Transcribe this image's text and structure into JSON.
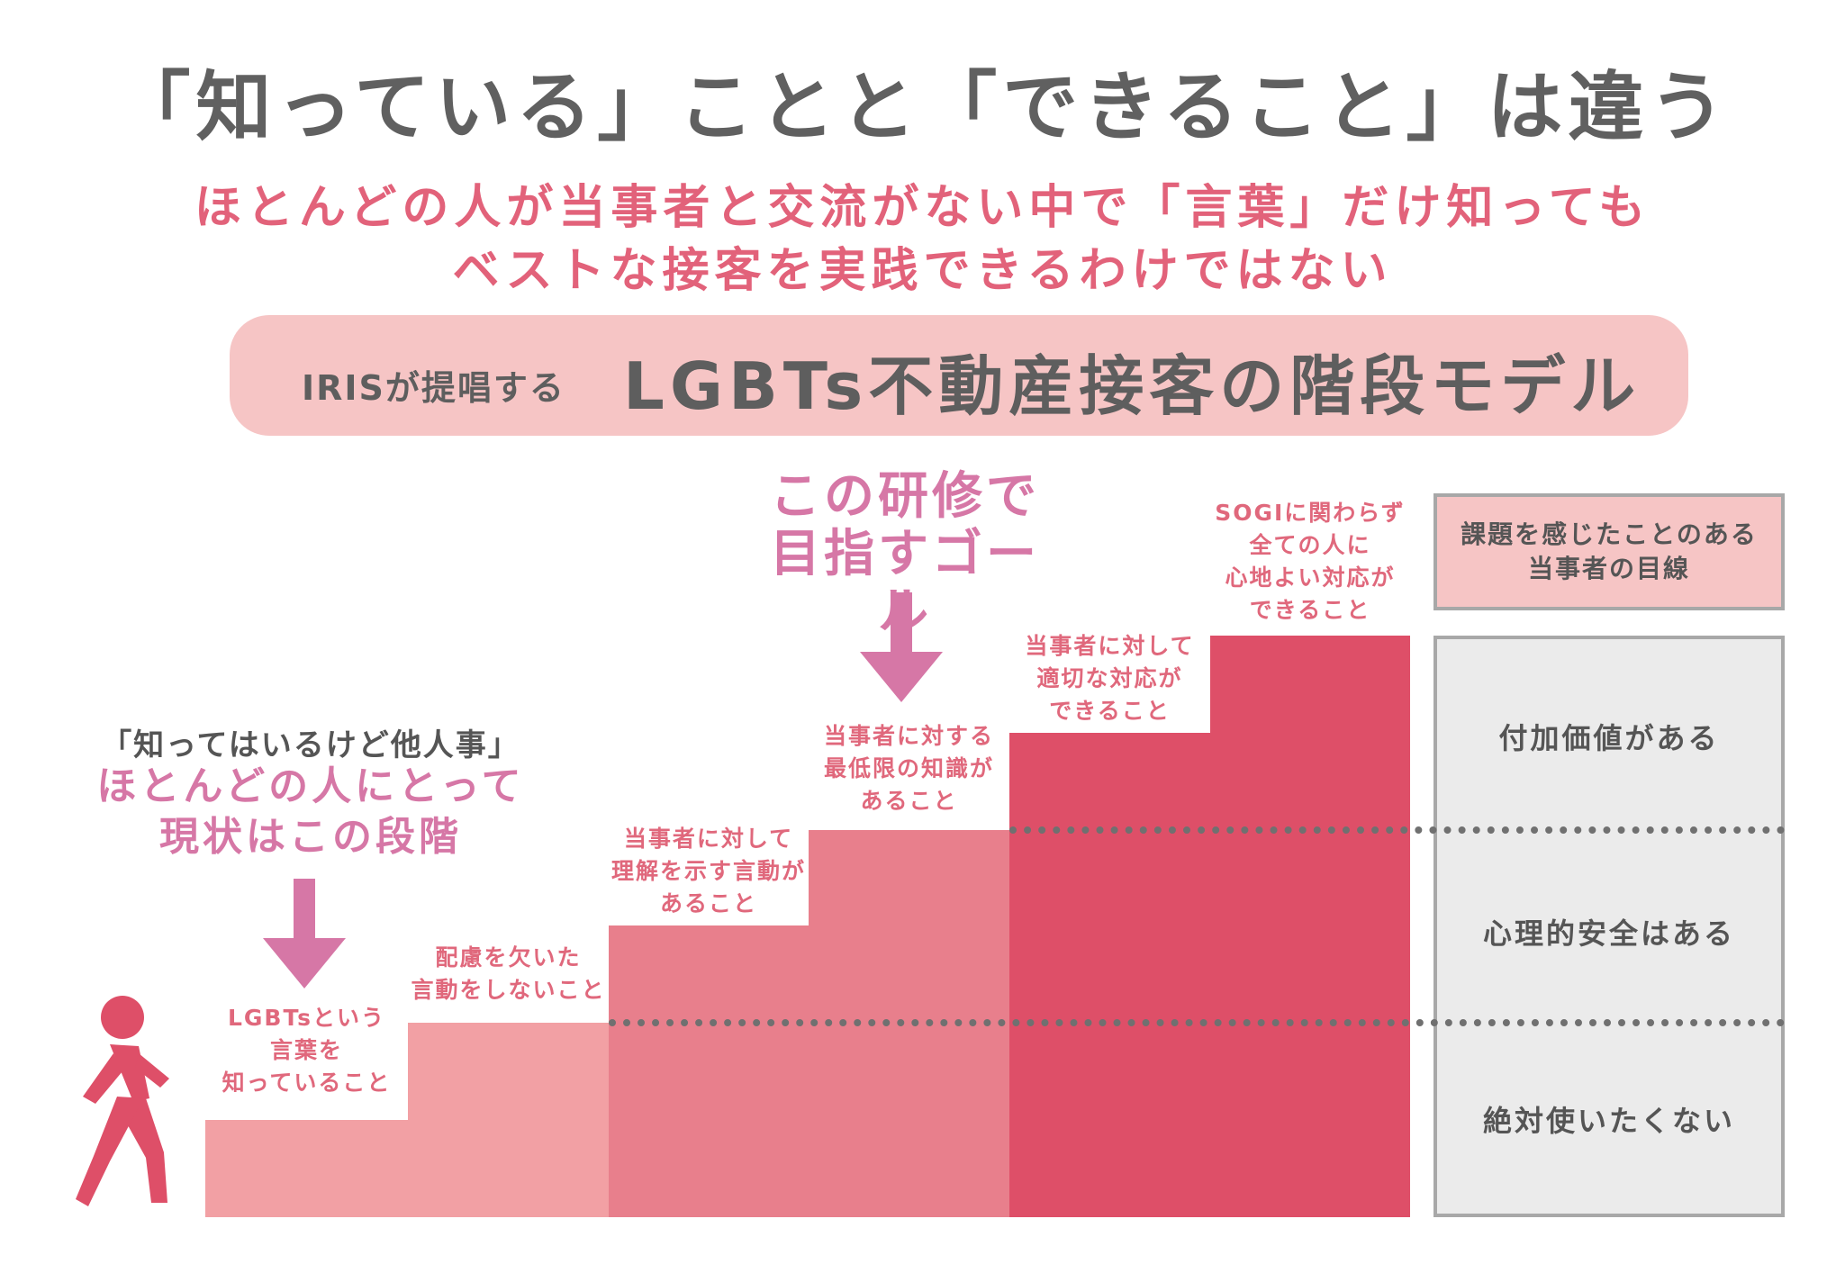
{
  "title": "「知っている」ことと「できること」は違う",
  "subtitle": {
    "line1": "ほとんどの人が当事者と交流がない中で「言葉」だけ知っても",
    "line2": "ベストな接客を実践できるわけではない"
  },
  "banner": {
    "small": "IRISが提唱する",
    "big": "LGBTs不動産接客の階段モデル"
  },
  "goal": {
    "line1": "この研修で",
    "line2": "目指すゴール"
  },
  "current": {
    "quote": "「知ってはいるけど他人事」",
    "line1": "ほとんどの人にとって",
    "line2": "現状はこの段階"
  },
  "steps": [
    {
      "lines": [
        "LGBTsという",
        "言葉を",
        "知っていること"
      ],
      "color": "#f2a0a4"
    },
    {
      "lines": [
        "配慮を欠いた",
        "言動をしないこと"
      ],
      "color": "#f2a0a4"
    },
    {
      "lines": [
        "当事者に対して",
        "理解を示す言動が",
        "あること"
      ],
      "color": "#e87f8c"
    },
    {
      "lines": [
        "当事者に対する",
        "最低限の知識が",
        "あること"
      ],
      "color": "#e87f8c"
    },
    {
      "lines": [
        "当事者に対して",
        "適切な対応が",
        "できること"
      ],
      "color": "#de4f68"
    },
    {
      "lines": [
        "SOGIに関わらず",
        "全ての人に",
        "心地よい対応が",
        "できること"
      ],
      "color": "#de4f68"
    }
  ],
  "side": {
    "header": {
      "line1": "課題を感じたことのある",
      "line2": "当事者の目線"
    },
    "levels": [
      "付加価値がある",
      "心理的安全はある",
      "絶対使いたくない"
    ]
  },
  "colors": {
    "title": "#606060",
    "accent": "#e2627a",
    "arrow": "#d677a6",
    "banner": "#f6c5c5",
    "panel": "#ebebeb"
  },
  "icons": {
    "person": "walking-person-icon"
  }
}
